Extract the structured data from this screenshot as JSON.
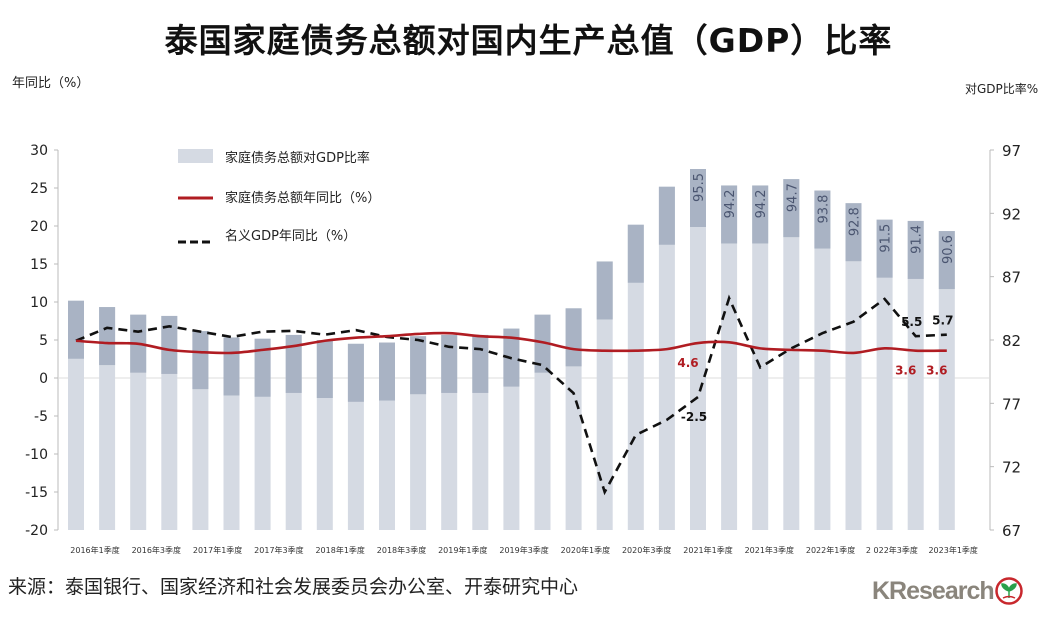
{
  "title": "泰国家庭债务总额对国内生产总值（GDP）比率",
  "source": "来源：泰国银行、国家经济和社会发展委员会办公室、开泰研究中心",
  "logo": "KResearch",
  "colors": {
    "bar_light": "#d5dae3",
    "bar_dark": "#a9b3c4",
    "red_line": "#b01c22",
    "black_line": "#111111",
    "red_label": "#b01c22"
  },
  "chart_data": {
    "type": "bar",
    "ylabel_left": "年同比（%）",
    "ylabel_right": "对GDP比率%",
    "ylim_left": [
      -20,
      30
    ],
    "yticks_left": [
      30,
      25,
      20,
      15,
      10,
      5,
      0,
      -5,
      -10,
      -15,
      -20
    ],
    "ylim_right": [
      67,
      97
    ],
    "yticks_right": [
      97,
      92,
      87,
      82,
      77,
      72,
      67
    ],
    "grid": false,
    "legend_placement": "top-left",
    "categories": [
      "2016Q1",
      "2016Q2",
      "2016Q3",
      "2016Q4",
      "2017Q1",
      "2017Q2",
      "2017Q3",
      "2017Q4",
      "2018Q1",
      "2018Q2",
      "2018Q3",
      "2018Q4",
      "2019Q1",
      "2019Q2",
      "2019Q3",
      "2019Q4",
      "2020Q1",
      "2020Q2",
      "2020Q3",
      "2020Q4",
      "2021Q1",
      "2021Q2",
      "2021Q3",
      "2021Q4",
      "2022Q1",
      "2022Q2",
      "2022Q3",
      "2022Q4",
      "2023Q1"
    ],
    "xtick_labels": [
      "2016年1季度",
      "2016年3季度",
      "2017年1季度",
      "2017年3季度",
      "2018年1季度",
      "2018年3季度",
      "2019年1季度",
      "2019年3季度",
      "2020年1季度",
      "2020年3季度",
      "2021年1季度",
      "2021年3季度",
      "2022年1季度",
      "2 022年3季度",
      "2023年1季度"
    ],
    "series": [
      {
        "name": "家庭债务总额对GDP比率",
        "type": "bar",
        "axis": "right",
        "values": [
          85.1,
          84.6,
          84.0,
          83.9,
          82.7,
          82.2,
          82.1,
          82.4,
          82.0,
          81.7,
          81.8,
          82.3,
          82.4,
          82.4,
          82.9,
          84.0,
          84.5,
          88.2,
          91.1,
          94.1,
          95.5,
          94.2,
          94.2,
          94.7,
          93.8,
          92.8,
          91.5,
          91.4,
          90.6
        ],
        "labels": [
          null,
          null,
          null,
          null,
          null,
          null,
          null,
          null,
          null,
          null,
          null,
          null,
          null,
          null,
          null,
          null,
          null,
          null,
          null,
          null,
          "95.5",
          "94.2",
          "94.2",
          "94.7",
          "93.8",
          "92.8",
          "91.5",
          "91.4",
          "90.6"
        ]
      },
      {
        "name": "家庭债务总额年同比（%）",
        "type": "line",
        "axis": "left",
        "values": [
          4.9,
          4.6,
          4.5,
          3.7,
          3.4,
          3.3,
          3.7,
          4.2,
          4.9,
          5.3,
          5.5,
          5.8,
          5.9,
          5.5,
          5.3,
          4.7,
          3.8,
          3.6,
          3.6,
          3.8,
          4.6,
          4.7,
          3.9,
          3.7,
          3.6,
          3.3,
          3.9,
          3.6,
          3.6
        ],
        "labels": [
          null,
          null,
          null,
          null,
          null,
          null,
          null,
          null,
          null,
          null,
          null,
          null,
          null,
          null,
          null,
          null,
          null,
          null,
          null,
          null,
          "4.6",
          null,
          null,
          null,
          null,
          null,
          null,
          "3.6",
          "3.6"
        ]
      },
      {
        "name": "名义GDP年同比（%）",
        "type": "line",
        "style": "dashed",
        "axis": "left",
        "values": [
          4.9,
          6.6,
          6.1,
          6.8,
          6.1,
          5.4,
          6.1,
          6.2,
          5.7,
          6.3,
          5.4,
          5.0,
          4.1,
          3.8,
          2.6,
          1.7,
          -2.0,
          -15.0,
          -7.5,
          -5.5,
          -2.5,
          10.5,
          1.4,
          3.9,
          5.9,
          7.4,
          10.4,
          5.5,
          5.7
        ],
        "labels": [
          null,
          null,
          null,
          null,
          null,
          null,
          null,
          null,
          null,
          null,
          null,
          null,
          null,
          null,
          null,
          null,
          null,
          null,
          null,
          null,
          "-2.5",
          null,
          null,
          null,
          null,
          null,
          null,
          "5.5",
          "5.7"
        ]
      }
    ]
  }
}
